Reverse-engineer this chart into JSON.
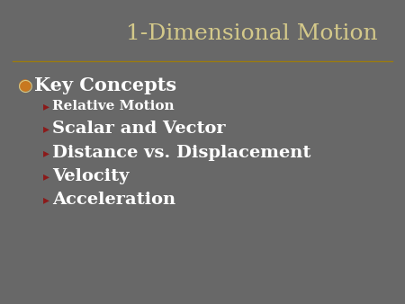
{
  "title": "1-Dimensional Motion",
  "title_color": "#d4c98a",
  "title_fontsize": 18,
  "background_color": "#686868",
  "separator_color": "#9a7c10",
  "main_bullet_symbol": "●",
  "main_bullet_color": "#c87820",
  "main_bullet_ring_color": "#d4c98a",
  "main_bullet_text": "Key Concepts",
  "main_bullet_fontsize": 15,
  "main_bullet_text_color": "#ffffff",
  "sub_bullet_symbol": "▸",
  "sub_bullet_color": "#8b1a1a",
  "sub_bullet_fontsize_small": 11,
  "sub_bullet_fontsize_large": 14,
  "sub_bullet_text_color": "#ffffff",
  "sub_items": [
    {
      "text": "Relative Motion",
      "large": false
    },
    {
      "text": "Scalar and Vector",
      "large": true
    },
    {
      "text": "Distance vs. Displacement",
      "large": true
    },
    {
      "text": "Velocity",
      "large": true
    },
    {
      "text": "Acceleration",
      "large": true
    }
  ]
}
